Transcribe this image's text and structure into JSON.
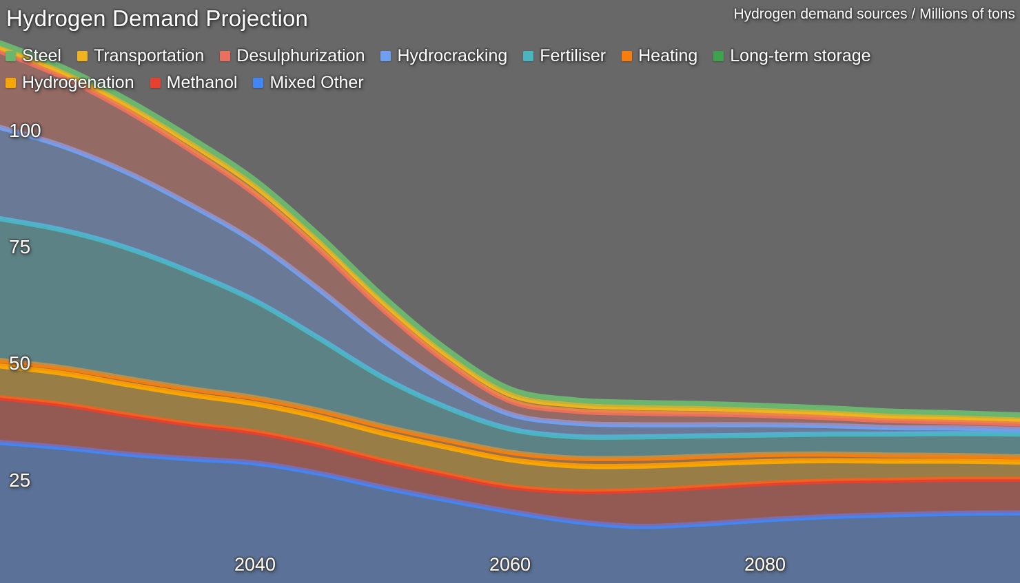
{
  "header": {
    "title": "Hydrogen Demand Projection",
    "subtitle": "Hydrogen demand sources / Millions of tons"
  },
  "colors": {
    "background": "#686868",
    "text": "#ffffff"
  },
  "chart_data": {
    "type": "area",
    "stacked": true,
    "title": "Hydrogen Demand Projection",
    "subtitle": "Hydrogen demand sources / Millions of tons",
    "xlabel": "",
    "ylabel": "Millions of tons",
    "grid": false,
    "legend_position": "top-left",
    "legend_rows": [
      7,
      3
    ],
    "x_range": [
      2020,
      2100
    ],
    "ylim": [
      0,
      125
    ],
    "x_ticks": [
      "2040",
      "2060",
      "2080"
    ],
    "x_tick_years": [
      2040,
      2060,
      2080
    ],
    "y_ticks": [
      "25",
      "50",
      "75",
      "100"
    ],
    "y_tick_values": [
      25,
      50,
      75,
      100
    ],
    "x": [
      2020,
      2025,
      2030,
      2035,
      2040,
      2045,
      2050,
      2055,
      2060,
      2065,
      2070,
      2075,
      2080,
      2085,
      2090,
      2095,
      2100
    ],
    "stack_order_bottom_to_top": [
      "Mixed Other",
      "Methanol",
      "Hydrogenation",
      "Long-term storage",
      "Heating",
      "Fertiliser",
      "Hydrocracking",
      "Desulphurization",
      "Transportation",
      "Steel"
    ],
    "series": [
      {
        "name": "Steel",
        "color": "#6cb56f",
        "values": [
          0.9,
          1.0,
          1.1,
          1.2,
          1.3,
          1.3,
          1.25,
          1.2,
          1.2,
          1.1,
          1.1,
          1.05,
          1.0,
          1.0,
          1.0,
          0.95,
          0.9
        ]
      },
      {
        "name": "Transportation",
        "color": "#f0b41e",
        "values": [
          0.9,
          1.1,
          1.3,
          1.5,
          1.7,
          1.7,
          1.6,
          1.5,
          1.4,
          1.3,
          1.2,
          1.2,
          1.1,
          1.1,
          1.0,
          1.0,
          1.0
        ]
      },
      {
        "name": "Desulphurization",
        "color": "#e9705f",
        "values": [
          16.3,
          14.8,
          13.2,
          11.7,
          10.3,
          8.6,
          6.6,
          4.5,
          2.8,
          2.6,
          2.5,
          2.3,
          2.0,
          1.7,
          1.5,
          1.3,
          1.2
        ]
      },
      {
        "name": "Hydrocracking",
        "color": "#6f9ff0",
        "values": [
          19.6,
          18.0,
          16.2,
          14.4,
          12.6,
          10.5,
          8.0,
          5.3,
          3.2,
          2.9,
          2.6,
          2.4,
          2.2,
          1.8,
          1.4,
          1.2,
          1.0
        ]
      },
      {
        "name": "Fertiliser",
        "color": "#49b6bf",
        "values": [
          30.4,
          29.5,
          28.0,
          25.0,
          20.8,
          15.5,
          10.5,
          7.0,
          5.0,
          4.6,
          4.6,
          4.4,
          4.2,
          4.3,
          4.5,
          4.7,
          4.9
        ]
      },
      {
        "name": "Heating",
        "color": "#f87d0c",
        "values": [
          1.2,
          1.2,
          1.3,
          1.3,
          1.3,
          1.4,
          1.5,
          1.55,
          1.6,
          1.65,
          1.7,
          1.6,
          1.5,
          1.4,
          1.3,
          1.2,
          1.1
        ]
      },
      {
        "name": "Long-term storage",
        "color": "#3fa24c",
        "values": [
          0,
          0,
          0,
          0,
          0,
          0,
          0,
          0,
          0,
          0,
          0,
          0,
          0,
          0,
          0,
          0,
          0
        ]
      },
      {
        "name": "Hydrogenation",
        "color": "#f5a706",
        "values": [
          6.8,
          6.7,
          6.5,
          6.3,
          6.1,
          6.0,
          5.9,
          5.9,
          5.8,
          5.5,
          5.2,
          5.0,
          4.7,
          4.4,
          4.1,
          3.9,
          3.7
        ]
      },
      {
        "name": "Methanol",
        "color": "#e8402f",
        "values": [
          9.6,
          9.2,
          8.4,
          7.4,
          6.6,
          6.1,
          5.7,
          5.4,
          5.3,
          6.4,
          7.7,
          7.9,
          7.8,
          7.6,
          7.4,
          7.3,
          7.2
        ]
      },
      {
        "name": "Mixed Other",
        "color": "#4285f4",
        "values": [
          33.1,
          32.0,
          30.6,
          29.6,
          28.7,
          26.5,
          23.5,
          20.8,
          18.3,
          16.2,
          15.1,
          15.6,
          16.5,
          17.2,
          17.6,
          17.9,
          18.0
        ]
      }
    ],
    "style": {
      "fill_opacity": 0.34,
      "line_width": 7.5
    }
  }
}
